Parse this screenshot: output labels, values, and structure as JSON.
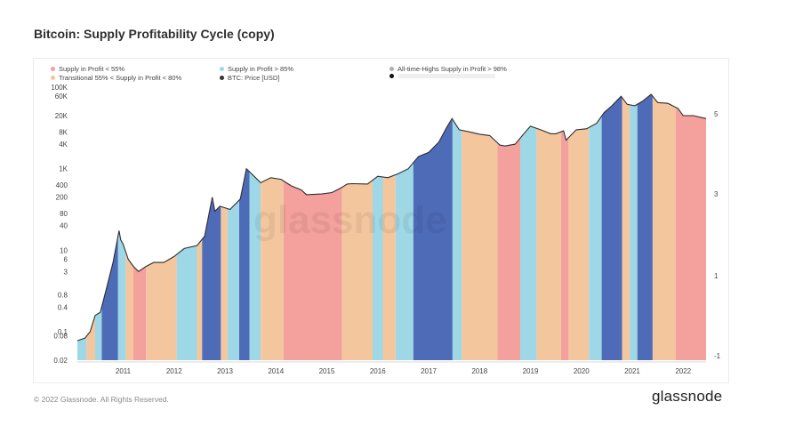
{
  "title": "Bitcoin: Supply Profitability Cycle (copy)",
  "footer": "© 2022 Glassnode. All Rights Reserved.",
  "brand": "glassnode",
  "watermark": "glassnode",
  "chart_data": {
    "type": "area",
    "title": "Bitcoin: Supply Profitability Cycle (copy)",
    "legend_placement": "top-left",
    "legend": [
      {
        "label": "Supply in Profit < 55%",
        "color": "#f4a09c"
      },
      {
        "label": "Supply in Profit > 85%",
        "color": "#9ed8e6"
      },
      {
        "label": "All-time-Highs Supply in Profit > 98%",
        "color": "#4e6bb8"
      },
      {
        "label": "Transitional 55% < Supply in Profit < 80%",
        "color": "#f4c69e"
      },
      {
        "label": "BTC: Price [USD]",
        "color": "#333333"
      },
      {
        "label": "",
        "color": "#111111"
      }
    ],
    "left_axis": {
      "scale": "log",
      "ylim": [
        0.02,
        100000
      ],
      "ticks": [
        "0.02",
        "0.08",
        "0.1",
        "0.4",
        "0.8",
        "3",
        "6",
        "10",
        "40",
        "80",
        "200",
        "400",
        "1K",
        "4K",
        "8K",
        "20K",
        "60K",
        "100K"
      ]
    },
    "right_axis": {
      "ticks": [
        "5",
        "3",
        "1",
        "-1"
      ]
    },
    "x_ticks": [
      "2011",
      "2012",
      "2013",
      "2014",
      "2015",
      "2016",
      "2017",
      "2018",
      "2019",
      "2020",
      "2021",
      "2022"
    ],
    "x_range": [
      2010.6,
      2022.95
    ],
    "price_series": {
      "name": "BTC: Price [USD]",
      "x": [
        2010.6,
        2010.75,
        2010.85,
        2010.95,
        2011.05,
        2011.15,
        2011.3,
        2011.42,
        2011.45,
        2011.5,
        2011.6,
        2011.7,
        2011.8,
        2011.95,
        2012.1,
        2012.3,
        2012.5,
        2012.7,
        2012.95,
        2013.1,
        2013.25,
        2013.3,
        2013.4,
        2013.6,
        2013.8,
        2013.92,
        2014.0,
        2014.1,
        2014.2,
        2014.4,
        2014.6,
        2014.8,
        2015.0,
        2015.1,
        2015.4,
        2015.6,
        2015.8,
        2015.9,
        2016.0,
        2016.3,
        2016.5,
        2016.7,
        2016.9,
        2017.1,
        2017.3,
        2017.5,
        2017.7,
        2017.85,
        2017.96,
        2018.1,
        2018.3,
        2018.5,
        2018.7,
        2018.9,
        2019.0,
        2019.2,
        2019.4,
        2019.5,
        2019.7,
        2019.9,
        2020.0,
        2020.15,
        2020.2,
        2020.4,
        2020.6,
        2020.8,
        2020.95,
        2021.1,
        2021.28,
        2021.4,
        2021.55,
        2021.7,
        2021.87,
        2022.0,
        2022.2,
        2022.4,
        2022.5,
        2022.7,
        2022.95
      ],
      "y": [
        0.06,
        0.07,
        0.1,
        0.25,
        0.3,
        0.9,
        5,
        30,
        18,
        14,
        6,
        4,
        3,
        4,
        5,
        5,
        7,
        11,
        13,
        22,
        200,
        90,
        120,
        100,
        180,
        1000,
        800,
        600,
        450,
        600,
        550,
        380,
        300,
        230,
        240,
        260,
        350,
        420,
        430,
        420,
        650,
        600,
        750,
        1000,
        2000,
        2500,
        4500,
        10000,
        17000,
        9000,
        8000,
        7000,
        6500,
        3800,
        3600,
        4000,
        8000,
        11000,
        9000,
        7200,
        7200,
        8500,
        5000,
        9000,
        9500,
        13000,
        24000,
        35000,
        60000,
        38000,
        35000,
        45000,
        67000,
        42000,
        40000,
        30000,
        20000,
        20000,
        17000
      ]
    },
    "regimes": [
      {
        "x0": 2010.6,
        "x1": 2010.78,
        "regime": "blue"
      },
      {
        "x0": 2010.78,
        "x1": 2010.95,
        "regime": "orange"
      },
      {
        "x0": 2010.95,
        "x1": 2011.08,
        "regime": "blue"
      },
      {
        "x0": 2011.08,
        "x1": 2011.4,
        "regime": "dark"
      },
      {
        "x0": 2011.4,
        "x1": 2011.55,
        "regime": "blue"
      },
      {
        "x0": 2011.55,
        "x1": 2011.7,
        "regime": "orange"
      },
      {
        "x0": 2011.7,
        "x1": 2011.95,
        "regime": "red"
      },
      {
        "x0": 2011.95,
        "x1": 2012.55,
        "regime": "orange"
      },
      {
        "x0": 2012.55,
        "x1": 2012.95,
        "regime": "blue"
      },
      {
        "x0": 2012.95,
        "x1": 2013.05,
        "regime": "orange"
      },
      {
        "x0": 2013.05,
        "x1": 2013.42,
        "regime": "dark"
      },
      {
        "x0": 2013.42,
        "x1": 2013.55,
        "regime": "orange"
      },
      {
        "x0": 2013.55,
        "x1": 2013.78,
        "regime": "blue"
      },
      {
        "x0": 2013.78,
        "x1": 2013.98,
        "regime": "dark"
      },
      {
        "x0": 2013.98,
        "x1": 2014.2,
        "regime": "blue"
      },
      {
        "x0": 2014.2,
        "x1": 2014.65,
        "regime": "orange"
      },
      {
        "x0": 2014.65,
        "x1": 2015.8,
        "regime": "red"
      },
      {
        "x0": 2015.8,
        "x1": 2016.4,
        "regime": "orange"
      },
      {
        "x0": 2016.4,
        "x1": 2016.6,
        "regime": "blue"
      },
      {
        "x0": 2016.6,
        "x1": 2016.85,
        "regime": "orange"
      },
      {
        "x0": 2016.85,
        "x1": 2017.2,
        "regime": "blue"
      },
      {
        "x0": 2017.2,
        "x1": 2017.97,
        "regime": "dark"
      },
      {
        "x0": 2017.97,
        "x1": 2018.15,
        "regime": "blue"
      },
      {
        "x0": 2018.15,
        "x1": 2018.85,
        "regime": "orange"
      },
      {
        "x0": 2018.85,
        "x1": 2019.3,
        "regime": "red"
      },
      {
        "x0": 2019.3,
        "x1": 2019.62,
        "regime": "blue"
      },
      {
        "x0": 2019.62,
        "x1": 2020.1,
        "regime": "orange"
      },
      {
        "x0": 2020.1,
        "x1": 2020.25,
        "regime": "red"
      },
      {
        "x0": 2020.25,
        "x1": 2020.65,
        "regime": "orange"
      },
      {
        "x0": 2020.65,
        "x1": 2020.9,
        "regime": "blue"
      },
      {
        "x0": 2020.9,
        "x1": 2021.3,
        "regime": "dark"
      },
      {
        "x0": 2021.3,
        "x1": 2021.45,
        "regime": "orange"
      },
      {
        "x0": 2021.45,
        "x1": 2021.6,
        "regime": "blue"
      },
      {
        "x0": 2021.6,
        "x1": 2021.9,
        "regime": "dark"
      },
      {
        "x0": 2021.9,
        "x1": 2022.35,
        "regime": "orange"
      },
      {
        "x0": 2022.35,
        "x1": 2022.95,
        "regime": "red"
      }
    ],
    "regime_colors": {
      "red": "#f4a09c",
      "orange": "#f4c69e",
      "blue": "#9ed8e6",
      "dark": "#4e6bb8"
    }
  }
}
